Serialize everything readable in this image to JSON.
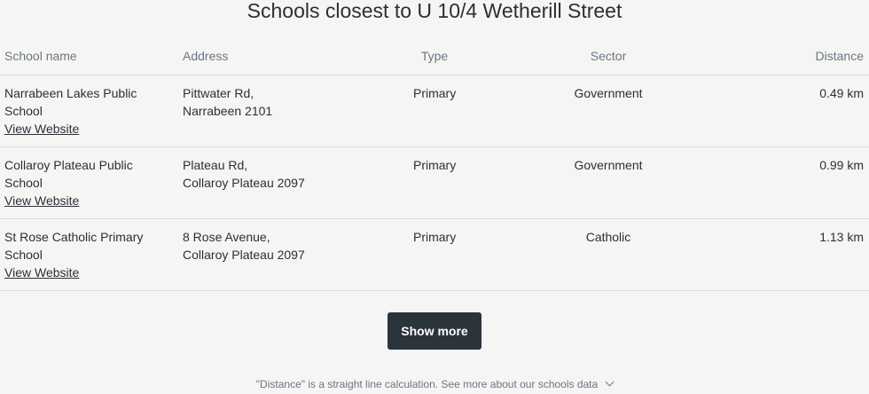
{
  "title": "Schools closest to U 10/4 Wetherill Street",
  "columns": {
    "name": "School name",
    "address": "Address",
    "type": "Type",
    "sector": "Sector",
    "distance": "Distance"
  },
  "schools": [
    {
      "name": "Narrabeen Lakes Public School",
      "link": "View Website",
      "address_line1": "Pittwater Rd,",
      "address_line2": "Narrabeen 2101",
      "type": "Primary",
      "sector": "Government",
      "distance": "0.49 km"
    },
    {
      "name": "Collaroy Plateau Public School",
      "link": "View Website",
      "address_line1": "Plateau Rd,",
      "address_line2": "Collaroy Plateau 2097",
      "type": "Primary",
      "sector": "Government",
      "distance": "0.99 km"
    },
    {
      "name": "St Rose Catholic Primary School",
      "link": "View Website",
      "address_line1": "8 Rose Avenue,",
      "address_line2": "Collaroy Plateau 2097",
      "type": "Primary",
      "sector": "Catholic",
      "distance": "1.13 km"
    }
  ],
  "show_more_label": "Show more",
  "footnote": "\"Distance\" is a straight line calculation. See more about our schools data",
  "icons": {
    "footnote_toggle": "chevron-down-icon"
  }
}
